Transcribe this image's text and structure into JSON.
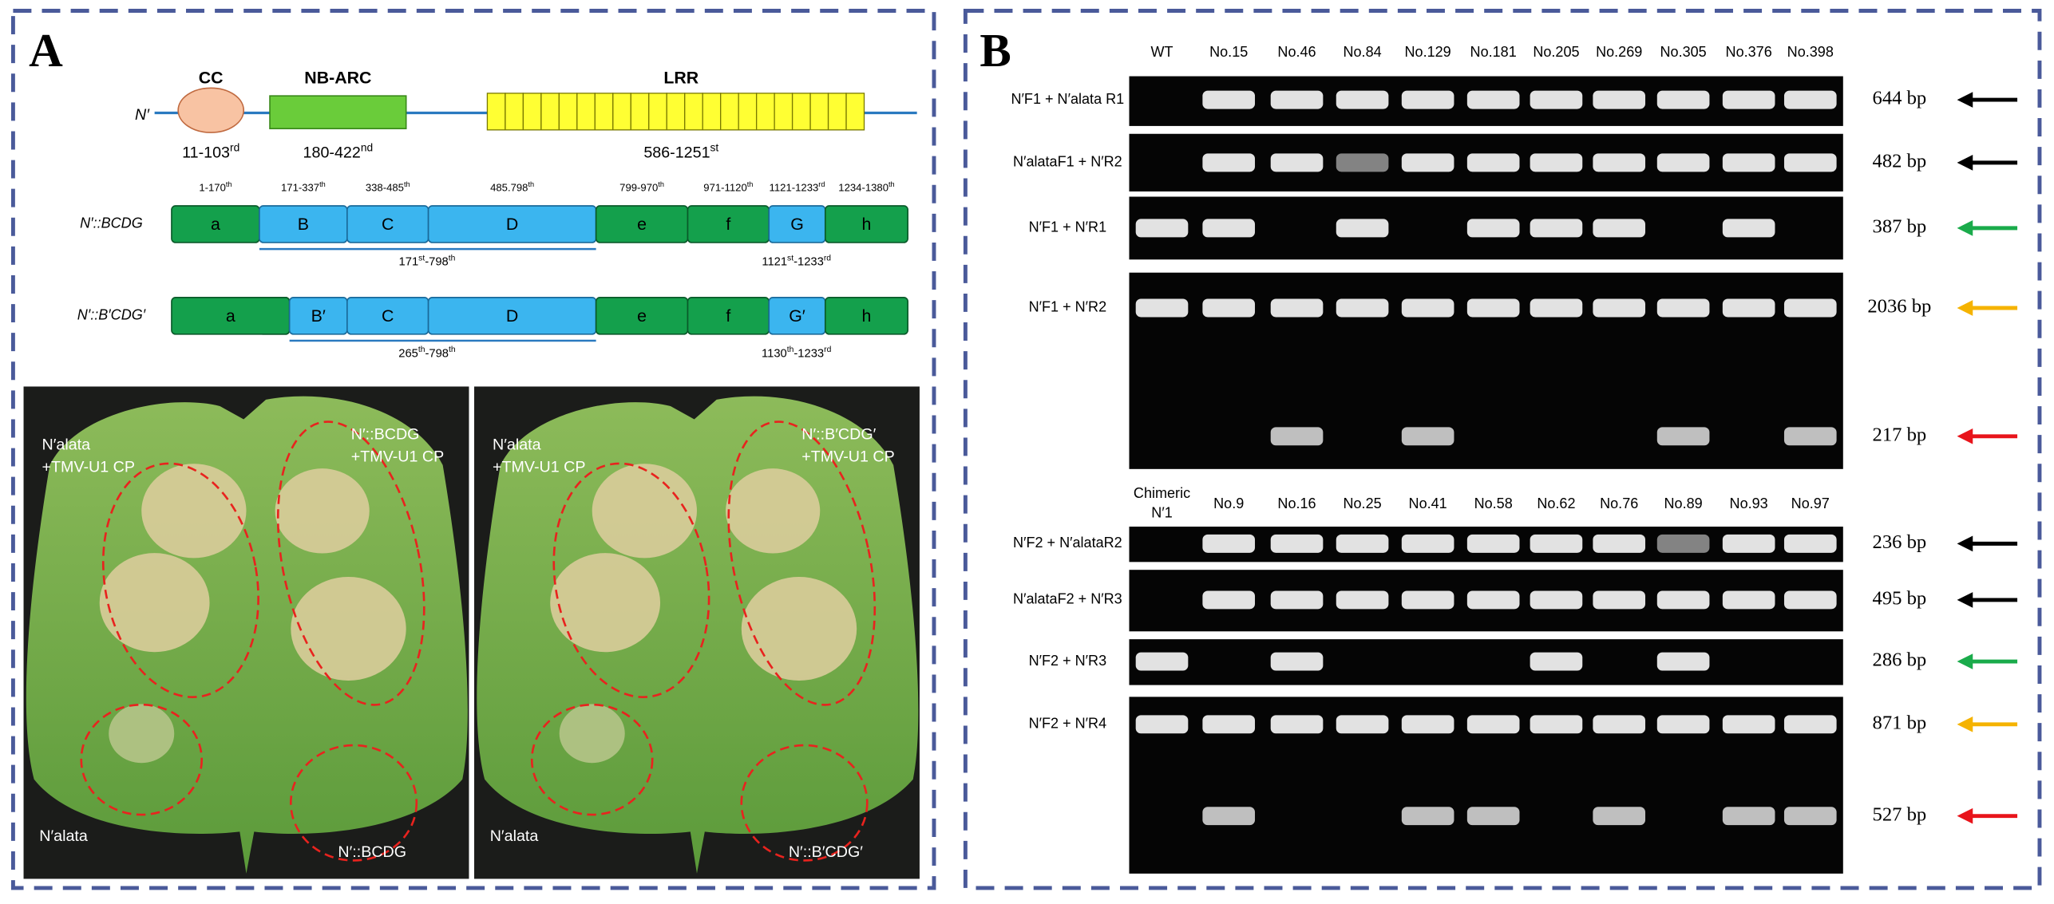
{
  "panel_a": {
    "label": "A",
    "domain_map": {
      "n_label": "N′",
      "cc": {
        "name": "CC",
        "range": {
          "text": "11-103",
          "sup": "rd"
        }
      },
      "nbarc": {
        "name": "NB-ARC",
        "range": {
          "text": "180-422",
          "sup": "nd"
        }
      },
      "lrr": {
        "name": "LRR",
        "range": {
          "text": "586-1251",
          "sup": "st"
        }
      }
    },
    "segment_ranges": [
      {
        "text": "1-170",
        "sup": "th"
      },
      {
        "text": "171-337",
        "sup": "th"
      },
      {
        "text": "338-485",
        "sup": "th"
      },
      {
        "text": "485.798",
        "sup": "th"
      },
      {
        "text": "799-970",
        "sup": "th"
      },
      {
        "text": "971-1120",
        "sup": "th"
      },
      {
        "text": "1121-1233",
        "sup": "rd"
      },
      {
        "text": "1234-1380",
        "sup": "th"
      }
    ],
    "constructs": [
      {
        "name": "N′::BCDG",
        "segments": [
          "a",
          "B",
          "C",
          "D",
          "e",
          "f",
          "G",
          "h"
        ],
        "span_left": [
          {
            "text": "171",
            "sup": "st"
          },
          {
            "text": "-798",
            "sup": "th"
          }
        ],
        "span_right": [
          {
            "text": "1121",
            "sup": "st"
          },
          {
            "text": "-1233",
            "sup": "rd"
          }
        ]
      },
      {
        "name": "N′::B′CDG′",
        "segments": [
          "a",
          "B′",
          "C",
          "D",
          "e",
          "f",
          "G′",
          "h"
        ],
        "span_left": [
          {
            "text": "265",
            "sup": "th"
          },
          {
            "text": "-798",
            "sup": "th"
          }
        ],
        "span_right": [
          {
            "text": "1130",
            "sup": "th"
          },
          {
            "text": "-1233",
            "sup": "rd"
          }
        ]
      }
    ],
    "leaves": [
      {
        "top_left": [
          "N′alata",
          "+TMV-U1 CP"
        ],
        "top_right": [
          "N′::BCDG",
          "+TMV-U1 CP"
        ],
        "bottom_left": "N′alata",
        "bottom_right": "N′::BCDG"
      },
      {
        "top_left": [
          "N′alata",
          "+TMV-U1 CP"
        ],
        "top_right": [
          "N′::B′CDG′",
          "+TMV-U1 CP"
        ],
        "bottom_left": "N′alata",
        "bottom_right": "N′::B′CDG′"
      }
    ]
  },
  "panel_b": {
    "label": "B",
    "gels": [
      {
        "lanes": [
          "WT",
          "No.15",
          "No.46",
          "No.84",
          "No.129",
          "No.181",
          "No.205",
          "No.269",
          "No.305",
          "No.376",
          "No.398"
        ],
        "rows": [
          {
            "primers": "N′F1 + N′alata R1",
            "sizes": [
              {
                "label": "644 bp",
                "arrow": "#000000"
              }
            ]
          },
          {
            "primers": "N′alataF1 + N′R2",
            "sizes": [
              {
                "label": "482 bp",
                "arrow": "#000000"
              }
            ]
          },
          {
            "primers": "N′F1 + N′R1",
            "sizes": [
              {
                "label": "387 bp",
                "arrow": "#1aab4b"
              }
            ]
          },
          {
            "primers": "N′F1 + N′R2",
            "sizes": [
              {
                "label": "2036 bp",
                "arrow": "#f5b300"
              },
              {
                "label": "217 bp",
                "arrow": "#e8141b"
              }
            ]
          }
        ]
      },
      {
        "lanes": [
          [
            "Chimeric",
            "N′1"
          ],
          "No.9",
          "No.16",
          "No.25",
          "No.41",
          "No.58",
          "No.62",
          "No.76",
          "No.89",
          "No.93",
          "No.97"
        ],
        "rows": [
          {
            "primers": "N′F2 + N′alataR2",
            "sizes": [
              {
                "label": "236 bp",
                "arrow": "#000000"
              }
            ]
          },
          {
            "primers": "N′alataF2 + N′R3",
            "sizes": [
              {
                "label": "495 bp",
                "arrow": "#000000"
              }
            ]
          },
          {
            "primers": "N′F2 + N′R3",
            "sizes": [
              {
                "label": "286 bp",
                "arrow": "#1aab4b"
              }
            ]
          },
          {
            "primers": "N′F2 + N′R4",
            "sizes": [
              {
                "label": "871 bp",
                "arrow": "#f5b300"
              },
              {
                "label": "527 bp",
                "arrow": "#e8141b"
              }
            ]
          }
        ]
      }
    ]
  }
}
